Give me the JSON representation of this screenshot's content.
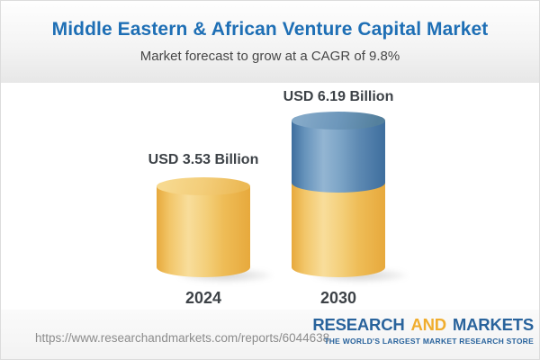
{
  "chart_data": {
    "type": "bar",
    "title": "Middle Eastern & African Venture Capital Market",
    "subtitle": "Market forecast to grow at a CAGR of 9.8%",
    "unit": "USD Billion",
    "cagr_percent": 9.8,
    "categories": [
      "2024",
      "2030"
    ],
    "values": [
      3.53,
      6.19
    ],
    "value_labels": [
      "USD 3.53 Billion",
      "USD 6.19 Billion"
    ],
    "series": [
      {
        "name": "2024 base (gold segment)",
        "values": [
          3.53,
          3.53
        ]
      },
      {
        "name": "forecast growth (blue segment)",
        "values": [
          0,
          2.66
        ]
      }
    ],
    "legend": "none",
    "axes": "none",
    "bar_style": "3d-cylinder",
    "colors": {
      "title_blue": "#1E6FB5",
      "subtitle_gray": "#474747",
      "bar_gold": "#EFBE59",
      "bar_blue": "#5F8DB4",
      "label_text": "#3D4247"
    }
  },
  "footer": {
    "url": "https://www.researchandmarkets.com/reports/6044638",
    "logo": {
      "word1": "RESEARCH",
      "word2": "AND",
      "word3": "MARKETS",
      "tagline": "THE WORLD'S LARGEST MARKET RESEARCH STORE",
      "brand_blue": "#29639C",
      "brand_gold": "#F0AD2E"
    }
  }
}
